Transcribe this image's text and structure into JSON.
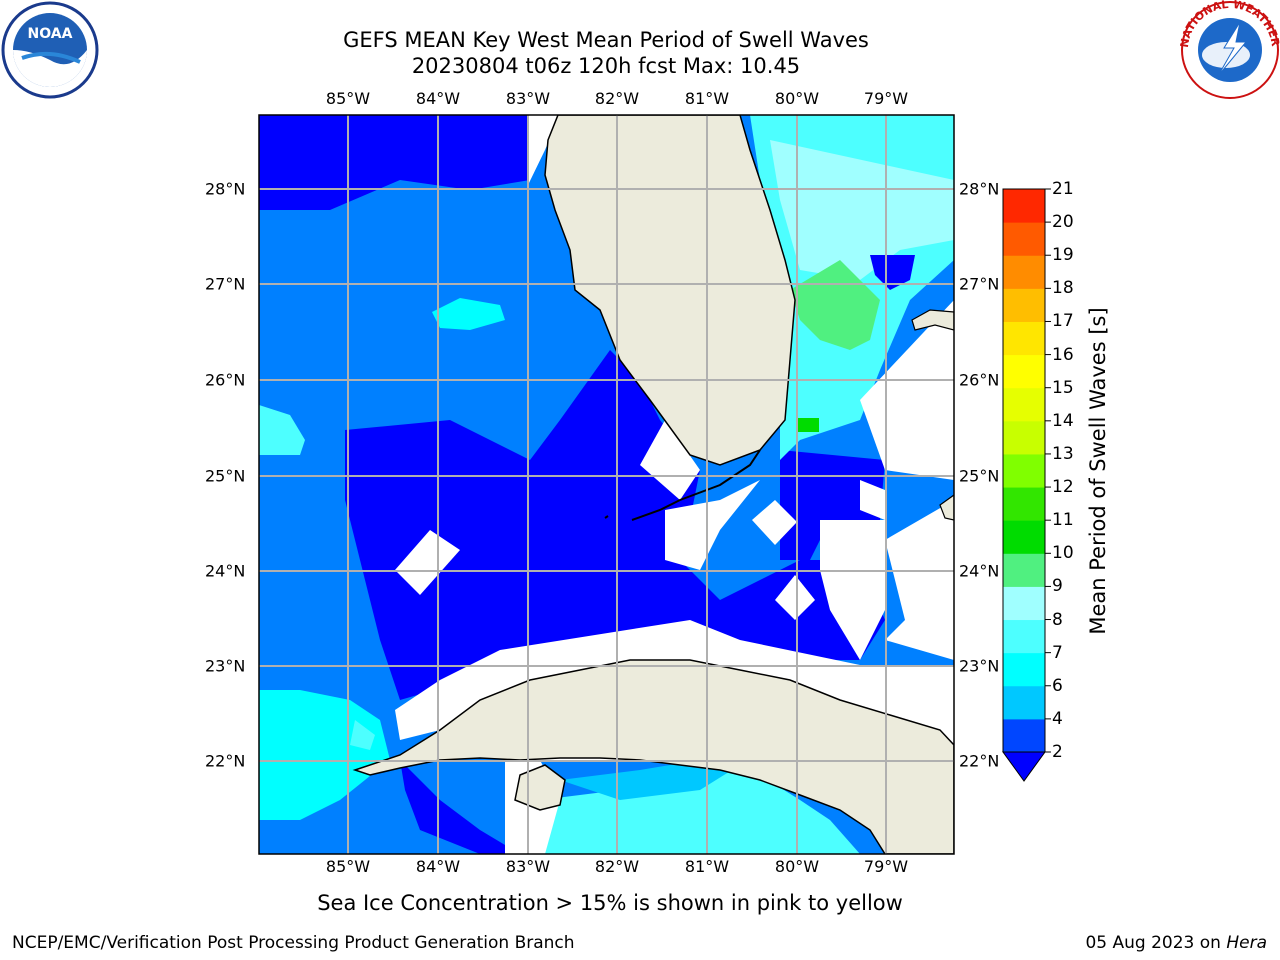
{
  "title": {
    "line1": "GEFS MEAN Key West Mean Period of Swell Waves",
    "line2": "20230804 t06z 120h fcst   Max: 10.45"
  },
  "map": {
    "lon_labels": [
      "85°W",
      "84°W",
      "83°W",
      "82°W",
      "81°W",
      "80°W",
      "79°W"
    ],
    "lat_labels": [
      "28°N",
      "27°N",
      "26°N",
      "25°N",
      "24°N",
      "23°N",
      "22°N"
    ],
    "land_color": "#ecebdc",
    "grid_color": "#b0b0b0"
  },
  "colorbar": {
    "label": "Mean Period of Swell Waves [s]",
    "ticks": [
      "2",
      "4",
      "6",
      "7",
      "8",
      "9",
      "10",
      "11",
      "12",
      "13",
      "14",
      "15",
      "16",
      "17",
      "18",
      "19",
      "20",
      "21"
    ],
    "colors": [
      "#0046ff",
      "#00c8ff",
      "#00ffff",
      "#4dffff",
      "#a0ffff",
      "#50f080",
      "#00dc00",
      "#32e600",
      "#80ff00",
      "#c8ff00",
      "#e6ff00",
      "#ffff00",
      "#ffe600",
      "#ffbe00",
      "#ff8c00",
      "#ff5a00",
      "#ff2800",
      "#ff0000"
    ],
    "under_color": "#0000ff"
  },
  "chart_data": {
    "type": "heatmap",
    "title": "GEFS MEAN Key West Mean Period of Swell Waves",
    "subtitle": "20230804 t06z 120h fcst   Max: 10.45",
    "xlabel": "",
    "ylabel": "",
    "xlim": [
      -86,
      -78.3
    ],
    "ylim": [
      21.05,
      28.75
    ],
    "colorbar_label": "Mean Period of Swell Waves [s]",
    "levels": [
      2,
      4,
      6,
      7,
      8,
      9,
      10,
      11,
      12,
      13,
      14,
      15,
      16,
      17,
      18,
      19,
      20,
      21
    ],
    "max_value": 10.45,
    "grid": true
  },
  "footnote": "Sea Ice Concentration > 15% is shown in pink to yellow",
  "footer": {
    "left": "NCEP/EMC/Verification Post Processing Product Generation Branch",
    "date": "05 Aug 2023 on ",
    "machine": "Hera"
  },
  "logos": {
    "noaa": "NOAA",
    "nws": "NATIONAL WEATHER SERVICE"
  }
}
